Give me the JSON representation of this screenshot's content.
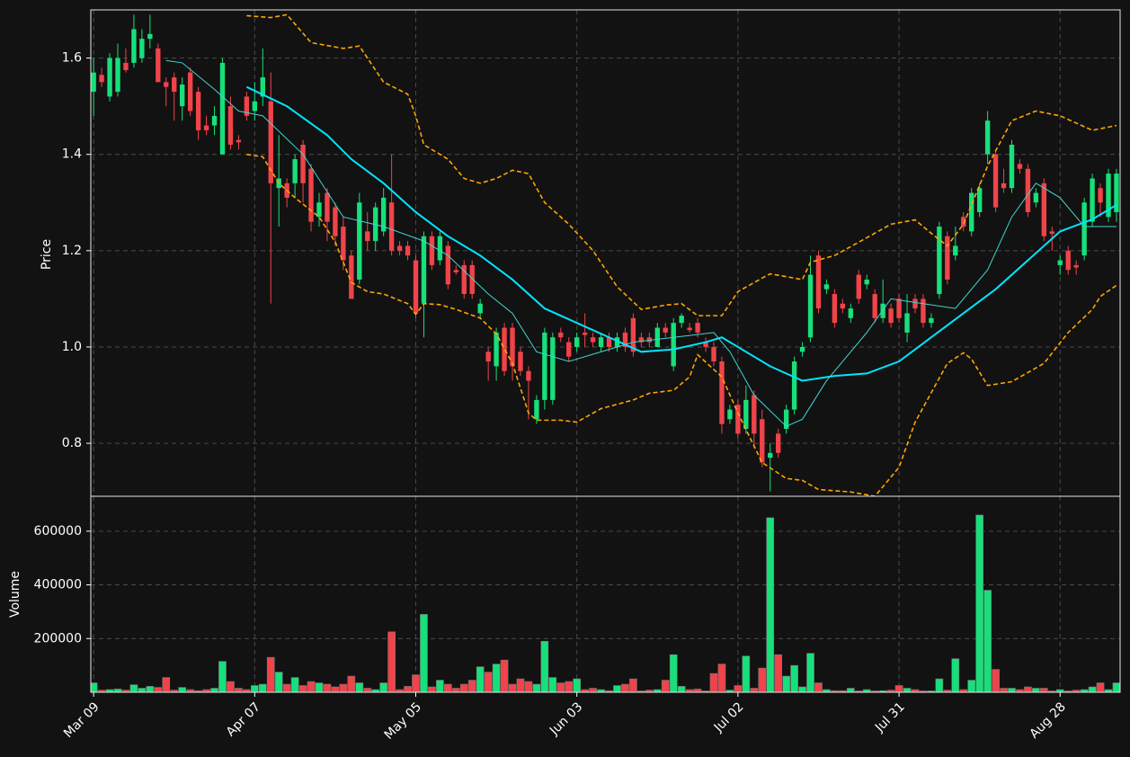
{
  "chart_data": [
    {
      "type": "candlestick",
      "ylabel": "Price",
      "up_color": "#17e07a",
      "down_color": "#f0434a",
      "xlim": [
        -0.35,
        127.45
      ],
      "ylim": [
        0.69,
        1.7
      ],
      "yticks": [
        0.8,
        {
          "value": 1,
          "label": "1.0"
        },
        1.2,
        1.4,
        1.6
      ],
      "grid": true,
      "x": [
        0,
        1,
        2,
        3,
        4,
        5,
        6,
        7,
        8,
        9,
        10,
        11,
        12,
        13,
        14,
        15,
        16,
        17,
        18,
        19,
        20,
        21,
        22,
        23,
        24,
        25,
        26,
        27,
        28,
        29,
        30,
        31,
        32,
        33,
        34,
        35,
        36,
        37,
        38,
        39,
        40,
        41,
        42,
        43,
        44,
        45,
        46,
        47,
        48,
        49,
        50,
        51,
        52,
        53,
        54,
        55,
        56,
        57,
        58,
        59,
        60,
        61,
        62,
        63,
        64,
        65,
        66,
        67,
        68,
        69,
        70,
        71,
        72,
        73,
        74,
        75,
        76,
        77,
        78,
        79,
        80,
        81,
        82,
        83,
        84,
        85,
        86,
        87,
        88,
        89,
        90,
        91,
        92,
        93,
        94,
        95,
        96,
        97,
        98,
        99,
        100,
        101,
        102,
        103,
        104,
        105,
        106,
        107,
        108,
        109,
        110,
        111,
        112,
        113,
        114,
        115,
        116,
        117,
        118,
        119,
        120,
        121,
        122,
        123,
        124,
        125,
        126,
        127
      ],
      "open": [
        1.53,
        1.565,
        1.52,
        1.53,
        1.59,
        1.59,
        1.6,
        1.64,
        1.62,
        1.55,
        1.56,
        1.5,
        1.57,
        1.53,
        1.46,
        1.46,
        1.4,
        1.5,
        1.43,
        1.52,
        1.49,
        1.52,
        1.51,
        1.33,
        1.34,
        1.34,
        1.42,
        1.37,
        1.27,
        1.32,
        1.29,
        1.25,
        1.19,
        1.14,
        1.24,
        1.22,
        1.24,
        1.3,
        1.21,
        1.21,
        1.18,
        1.09,
        1.23,
        1.18,
        1.21,
        1.16,
        1.17,
        1.17,
        1.07,
        0.99,
        0.96,
        1.04,
        1.04,
        0.99,
        0.95,
        0.85,
        0.89,
        0.89,
        1.03,
        1.01,
        1.0,
        1.03,
        1.02,
        1.0,
        1.02,
        1.0,
        1.03,
        1.06,
        1.02,
        1.02,
        1.0,
        1.04,
        0.96,
        1.05,
        1.04,
        1.05,
        1.01,
        1.0,
        0.97,
        0.85,
        0.88,
        0.83,
        0.9,
        0.85,
        0.77,
        0.82,
        0.83,
        0.87,
        0.99,
        1.02,
        1.19,
        1.12,
        1.11,
        1.09,
        1.06,
        1.15,
        1.13,
        1.11,
        1.06,
        1.08,
        1.1,
        1.03,
        1.1,
        1.1,
        1.05,
        1.11,
        1.23,
        1.19,
        1.27,
        1.24,
        1.28,
        1.4,
        1.4,
        1.34,
        1.33,
        1.38,
        1.37,
        1.3,
        1.34,
        1.24,
        1.17,
        1.2,
        1.17,
        1.19,
        1.26,
        1.33,
        1.27,
        1.28
      ],
      "high": [
        1.6,
        1.58,
        1.61,
        1.63,
        1.62,
        1.69,
        1.66,
        1.69,
        1.63,
        1.56,
        1.57,
        1.56,
        1.58,
        1.54,
        1.48,
        1.5,
        1.6,
        1.52,
        1.44,
        1.53,
        1.55,
        1.62,
        1.57,
        1.44,
        1.35,
        1.4,
        1.43,
        1.38,
        1.32,
        1.33,
        1.3,
        1.27,
        1.2,
        1.32,
        1.28,
        1.3,
        1.33,
        1.4,
        1.22,
        1.22,
        1.19,
        1.24,
        1.24,
        1.24,
        1.22,
        1.17,
        1.18,
        1.18,
        1.1,
        1.0,
        1.04,
        1.05,
        1.05,
        1.0,
        0.96,
        0.9,
        1.04,
        1.03,
        1.04,
        1.02,
        1.03,
        1.07,
        1.03,
        1.03,
        1.03,
        1.03,
        1.04,
        1.07,
        1.03,
        1.03,
        1.05,
        1.05,
        1.06,
        1.07,
        1.05,
        1.06,
        1.02,
        1.01,
        0.98,
        0.88,
        0.89,
        0.92,
        0.91,
        0.87,
        0.8,
        0.83,
        0.88,
        0.98,
        1.01,
        1.19,
        1.2,
        1.14,
        1.12,
        1.1,
        1.09,
        1.16,
        1.15,
        1.12,
        1.14,
        1.09,
        1.11,
        1.11,
        1.11,
        1.11,
        1.07,
        1.26,
        1.24,
        1.25,
        1.28,
        1.33,
        1.34,
        1.49,
        1.41,
        1.37,
        1.43,
        1.39,
        1.38,
        1.33,
        1.35,
        1.25,
        1.19,
        1.21,
        1.18,
        1.31,
        1.36,
        1.34,
        1.37,
        1.37
      ],
      "low": [
        1.48,
        1.54,
        1.51,
        1.52,
        1.57,
        1.58,
        1.59,
        1.62,
        1.55,
        1.5,
        1.47,
        1.47,
        1.48,
        1.43,
        1.44,
        1.44,
        1.4,
        1.41,
        1.41,
        1.47,
        1.47,
        1.5,
        1.09,
        1.25,
        1.29,
        1.31,
        1.3,
        1.24,
        1.25,
        1.22,
        1.21,
        1.16,
        1.1,
        1.13,
        1.2,
        1.2,
        1.23,
        1.19,
        1.19,
        1.18,
        1.06,
        1.02,
        1.16,
        1.17,
        1.12,
        1.15,
        1.1,
        1.1,
        1.06,
        0.93,
        0.93,
        0.94,
        0.93,
        0.94,
        0.85,
        0.84,
        0.87,
        0.88,
        1.01,
        0.97,
        0.99,
        1.0,
        1.0,
        0.99,
        0.99,
        0.99,
        0.99,
        0.98,
        1.0,
        1.0,
        1.0,
        1.02,
        0.95,
        1.04,
        1.03,
        1.02,
        0.99,
        0.96,
        0.82,
        0.84,
        0.81,
        0.82,
        0.79,
        0.75,
        0.7,
        0.77,
        0.82,
        0.86,
        0.98,
        1.01,
        1.07,
        1.11,
        1.04,
        1.07,
        1.05,
        1.09,
        1.12,
        1.05,
        1.05,
        1.04,
        1.05,
        1.01,
        1.07,
        1.04,
        1.04,
        1.1,
        1.13,
        1.18,
        1.24,
        1.23,
        1.27,
        1.38,
        1.28,
        1.32,
        1.32,
        1.36,
        1.27,
        1.29,
        1.22,
        1.2,
        1.15,
        1.15,
        1.15,
        1.18,
        1.25,
        1.27,
        1.26,
        1.26
      ],
      "close": [
        1.57,
        1.55,
        1.6,
        1.6,
        1.575,
        1.66,
        1.64,
        1.65,
        1.55,
        1.54,
        1.53,
        1.545,
        1.49,
        1.45,
        1.45,
        1.48,
        1.59,
        1.42,
        1.425,
        1.48,
        1.51,
        1.56,
        1.34,
        1.35,
        1.31,
        1.39,
        1.34,
        1.26,
        1.3,
        1.26,
        1.23,
        1.18,
        1.1,
        1.3,
        1.22,
        1.29,
        1.31,
        1.2,
        1.2,
        1.19,
        1.07,
        1.23,
        1.17,
        1.23,
        1.13,
        1.155,
        1.11,
        1.11,
        1.09,
        0.97,
        1.03,
        0.95,
        0.96,
        0.95,
        0.93,
        0.89,
        1.03,
        1.02,
        1.02,
        0.98,
        1.02,
        1.025,
        1.01,
        1.02,
        1.0,
        1.02,
        1.0,
        0.99,
        1.01,
        1.01,
        1.04,
        1.03,
        1.05,
        1.065,
        1.035,
        1.03,
        1.0,
        0.97,
        0.84,
        0.87,
        0.82,
        0.89,
        0.82,
        0.76,
        0.78,
        0.78,
        0.87,
        0.97,
        1.0,
        1.15,
        1.08,
        1.13,
        1.05,
        1.08,
        1.08,
        1.1,
        1.14,
        1.06,
        1.09,
        1.05,
        1.06,
        1.07,
        1.08,
        1.05,
        1.06,
        1.25,
        1.14,
        1.21,
        1.25,
        1.32,
        1.33,
        1.47,
        1.29,
        1.33,
        1.42,
        1.37,
        1.28,
        1.32,
        1.23,
        1.235,
        1.18,
        1.16,
        1.165,
        1.3,
        1.35,
        1.3,
        1.36,
        1.36
      ],
      "series": [
        {
          "color": "#00e5ff",
          "width": 2,
          "dashed": false,
          "x": [
            19,
            24,
            29,
            32,
            36,
            40,
            44,
            48,
            52,
            56,
            60,
            64,
            68,
            72,
            76,
            78,
            80,
            84,
            88,
            92,
            96,
            100,
            104,
            108,
            112,
            116,
            120,
            124,
            127
          ],
          "values": [
            1.54,
            1.5,
            1.44,
            1.39,
            1.34,
            1.28,
            1.23,
            1.19,
            1.14,
            1.08,
            1.05,
            1.02,
            0.99,
            0.995,
            1.01,
            1.02,
            1.0,
            0.96,
            0.93,
            0.94,
            0.945,
            0.97,
            1.02,
            1.07,
            1.12,
            1.18,
            1.24,
            1.265,
            1.295
          ]
        },
        {
          "color": "#3fd6d0",
          "width": 1,
          "dashed": false,
          "x": [
            9,
            11,
            15,
            18,
            21,
            26,
            31,
            36,
            41,
            44,
            49,
            52,
            55,
            59,
            62,
            67,
            72,
            77,
            79,
            82,
            86,
            88,
            91,
            96,
            99,
            103,
            107,
            111,
            114,
            117,
            120,
            123,
            127
          ],
          "values": [
            1.595,
            1.59,
            1.535,
            1.49,
            1.48,
            1.4,
            1.27,
            1.25,
            1.22,
            1.19,
            1.11,
            1.07,
            0.99,
            0.97,
            0.985,
            1.01,
            1.02,
            1.03,
            0.99,
            0.9,
            0.835,
            0.85,
            0.93,
            1.03,
            1.1,
            1.09,
            1.08,
            1.16,
            1.27,
            1.34,
            1.31,
            1.25,
            1.25
          ]
        },
        {
          "color": "#ffa500",
          "width": 1.6,
          "dashed": true,
          "x": [
            19,
            22,
            24,
            27,
            31,
            33,
            34,
            36,
            39,
            40,
            41,
            44,
            46,
            48,
            50,
            52,
            54,
            56,
            59,
            62,
            65,
            68,
            71,
            73,
            75,
            78,
            80,
            83,
            84,
            88,
            89,
            92,
            96,
            99,
            102,
            104,
            106,
            108,
            111,
            114,
            117,
            120,
            124,
            127
          ],
          "values": [
            1.688,
            1.684,
            1.69,
            1.632,
            1.62,
            1.625,
            1.6,
            1.55,
            1.525,
            1.48,
            1.42,
            1.39,
            1.35,
            1.34,
            1.35,
            1.367,
            1.36,
            1.3,
            1.255,
            1.2,
            1.125,
            1.078,
            1.087,
            1.09,
            1.065,
            1.065,
            1.115,
            1.143,
            1.152,
            1.14,
            1.176,
            1.19,
            1.227,
            1.255,
            1.264,
            1.236,
            1.21,
            1.255,
            1.376,
            1.47,
            1.49,
            1.48,
            1.45,
            1.46
          ]
        },
        {
          "color": "#ffa500",
          "width": 1.6,
          "dashed": true,
          "x": [
            19,
            21,
            23,
            25,
            28,
            30,
            32,
            34,
            36,
            39,
            40,
            41,
            43,
            45,
            48,
            50,
            52,
            54,
            55,
            58,
            60,
            63,
            67,
            69,
            72,
            74,
            75,
            78,
            80,
            83,
            86,
            88,
            90,
            94,
            97,
            100,
            102,
            106,
            108,
            109,
            111,
            114,
            118,
            121,
            124,
            125,
            127
          ],
          "values": [
            1.4,
            1.395,
            1.34,
            1.31,
            1.27,
            1.218,
            1.134,
            1.115,
            1.11,
            1.09,
            1.068,
            1.09,
            1.088,
            1.078,
            1.06,
            1.027,
            0.966,
            0.863,
            0.848,
            0.848,
            0.844,
            0.872,
            0.89,
            0.904,
            0.91,
            0.938,
            0.984,
            0.938,
            0.863,
            0.76,
            0.727,
            0.723,
            0.704,
            0.699,
            0.69,
            0.75,
            0.844,
            0.966,
            0.988,
            0.975,
            0.92,
            0.928,
            0.966,
            1.03,
            1.078,
            1.105,
            1.128
          ]
        }
      ]
    },
    {
      "type": "bar",
      "ylabel": "Volume",
      "xlim": [
        -0.35,
        127.45
      ],
      "ylim": [
        0,
        730000
      ],
      "yticks": [
        200000,
        400000,
        600000
      ],
      "xticks": [
        {
          "value": 0,
          "label": "Mar 09"
        },
        {
          "value": 20,
          "label": "Apr 07"
        },
        {
          "value": 40,
          "label": "May 05"
        },
        {
          "value": 60,
          "label": "Jun 03"
        },
        {
          "value": 80,
          "label": "Jul 02"
        },
        {
          "value": 100,
          "label": "Jul 31"
        },
        {
          "value": 120,
          "label": "Aug 28"
        }
      ],
      "grid": true,
      "values": [
        35000,
        8000,
        10000,
        12000,
        8000,
        28000,
        15000,
        22000,
        18000,
        55000,
        8000,
        18000,
        10000,
        6000,
        10000,
        15000,
        115000,
        40000,
        15000,
        10000,
        25000,
        30000,
        130000,
        75000,
        30000,
        55000,
        25000,
        40000,
        35000,
        30000,
        20000,
        30000,
        60000,
        35000,
        15000,
        10000,
        35000,
        225000,
        10000,
        22000,
        65000,
        290000,
        20000,
        45000,
        30000,
        15000,
        30000,
        45000,
        95000,
        75000,
        105000,
        120000,
        30000,
        50000,
        40000,
        30000,
        190000,
        55000,
        35000,
        40000,
        50000,
        10000,
        15000,
        10000,
        6000,
        25000,
        30000,
        50000,
        5000,
        8000,
        10000,
        45000,
        140000,
        22000,
        10000,
        12000,
        5000,
        70000,
        105000,
        8000,
        25000,
        135000,
        15000,
        90000,
        650000,
        140000,
        60000,
        100000,
        20000,
        145000,
        35000,
        10000,
        6000,
        6000,
        15000,
        5000,
        10000,
        5000,
        6000,
        8000,
        25000,
        15000,
        10000,
        5000,
        5000,
        50000,
        8000,
        125000,
        10000,
        45000,
        660000,
        380000,
        85000,
        15000,
        15000,
        10000,
        20000,
        15000,
        15000,
        5000,
        10000,
        5000,
        8000,
        10000,
        20000,
        35000,
        10000,
        35000
      ]
    }
  ]
}
